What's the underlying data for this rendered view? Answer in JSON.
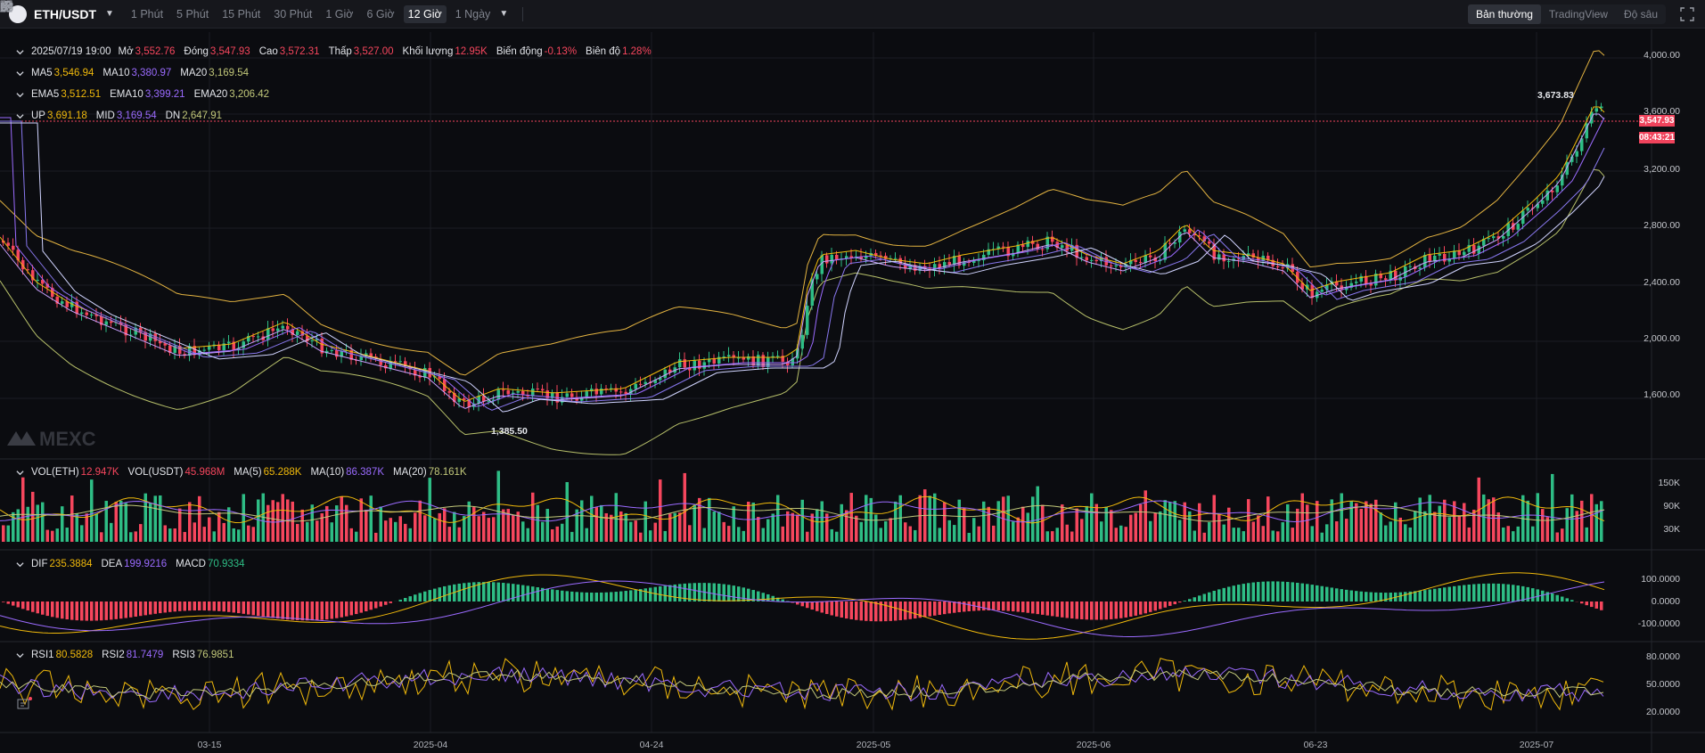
{
  "symbol": {
    "pair": "ETH/USDT",
    "icon": "ethereum-icon"
  },
  "timeframes": [
    "1 Phút",
    "5 Phút",
    "15 Phút",
    "30 Phút",
    "1 Giờ",
    "6 Giờ",
    "12 Giờ",
    "1 Ngày"
  ],
  "active_timeframe": "12 Giờ",
  "tools": [
    "indicator-bars-icon",
    "fx-icon",
    "pencil-icon",
    "layout-grid-icon",
    "camera-icon"
  ],
  "views": [
    "Bản thường",
    "TradingView",
    "Độ sâu"
  ],
  "active_view": "Bản thường",
  "colors": {
    "up": "#2ebd85",
    "down": "#f6465d",
    "ma5": "#f0b90b",
    "ma10": "#9b6bff",
    "ma20": "#c2c87a",
    "price_line": "#f0435c"
  },
  "ohlc": {
    "date": "2025/07/19 19:00",
    "open_label": "Mở",
    "open": "3,552.76",
    "close_label": "Đóng",
    "close": "3,547.93",
    "high_label": "Cao",
    "high": "3,572.31",
    "low_label": "Thấp",
    "low": "3,527.00",
    "volume_label": "Khối lượng",
    "volume": "12.95K",
    "change_label": "Biến động",
    "change": "-0.13%",
    "amplitude_label": "Biên độ",
    "amplitude": "1.28%"
  },
  "ma": {
    "ma5_label": "MA5",
    "ma5": "3,546.94",
    "ma10_label": "MA10",
    "ma10": "3,380.97",
    "ma20_label": "MA20",
    "ma20": "3,169.54"
  },
  "ema": {
    "ema5_label": "EMA5",
    "ema5": "3,512.51",
    "ema10_label": "EMA10",
    "ema10": "3,399.21",
    "ema20_label": "EMA20",
    "ema20": "3,206.42"
  },
  "boll": {
    "up_label": "UP",
    "up": "3,691.18",
    "mid_label": "MID",
    "mid": "3,169.54",
    "dn_label": "DN",
    "dn": "2,647.91"
  },
  "vol": {
    "eth_label": "VOL(ETH)",
    "eth": "12.947K",
    "usdt_label": "VOL(USDT)",
    "usdt": "45.968M",
    "ma5_label": "MA(5)",
    "ma5": "65.288K",
    "ma10_label": "MA(10)",
    "ma10": "86.387K",
    "ma20_label": "MA(20)",
    "ma20": "78.161K"
  },
  "macd": {
    "dif_label": "DIF",
    "dif": "235.3884",
    "dea_label": "DEA",
    "dea": "199.9216",
    "macd_label": "MACD",
    "macd": "70.9334"
  },
  "rsi": {
    "rsi1_label": "RSI1",
    "rsi1": "80.5828",
    "rsi2_label": "RSI2",
    "rsi2": "81.7479",
    "rsi3_label": "RSI3",
    "rsi3": "76.9851"
  },
  "last_price": "3,547.93",
  "countdown": "08:43:21",
  "high_annotation": "3,673.83",
  "low_annotation": "1,385.50",
  "watermark": "MEXC",
  "price_axis": [
    "4,000.00",
    "3,600.00",
    "3,200.00",
    "2,800.00",
    "2,400.00",
    "2,000.00",
    "1,600.00"
  ],
  "volume_axis": [
    "150K",
    "90K",
    "30K"
  ],
  "macd_axis": [
    "100.0000",
    "0.0000",
    "-100.0000"
  ],
  "rsi_axis": [
    "80.0000",
    "50.0000",
    "20.0000"
  ],
  "dates": [
    "03-15",
    "2025-04",
    "04-24",
    "2025-05",
    "2025-06",
    "06-23",
    "2025-07"
  ]
}
